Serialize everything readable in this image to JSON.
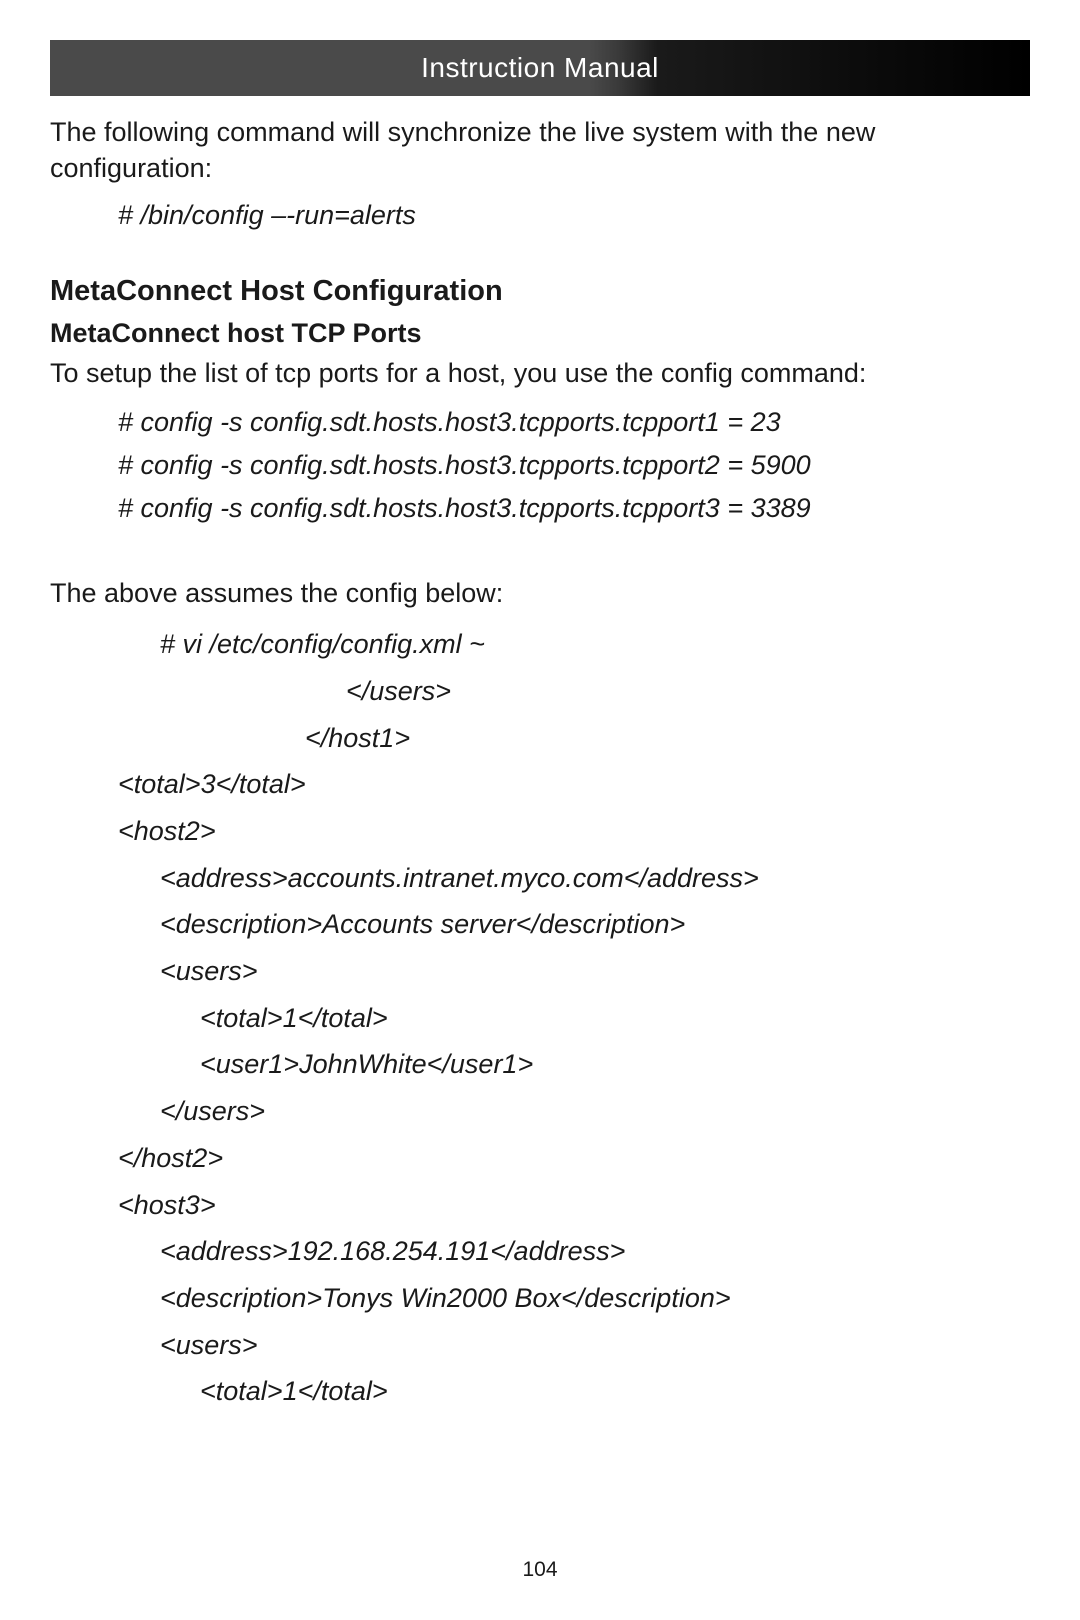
{
  "header": {
    "title": "Instruction Manual"
  },
  "intro_text": "The following command will synchronize the live system with the new configuration:",
  "intro_command": "# /bin/config –-run=alerts",
  "section": {
    "heading": "MetaConnect Host Configuration",
    "sub_heading": "MetaConnect host TCP Ports",
    "body": "To setup the list of tcp ports for a host, you use the config command:",
    "commands": [
      "# config -s config.sdt.hosts.host3.tcpports.tcpport1 = 23",
      "# config -s config.sdt.hosts.host3.tcpports.tcpport2 = 5900",
      "# config -s config.sdt.hosts.host3.tcpports.tcpport3 = 3389"
    ],
    "assumes": "The above assumes the config below:",
    "xml_lines": [
      {
        "text": "# vi /etc/config/config.xml ~",
        "indent": "indent-1"
      },
      {
        "text": "</users>",
        "indent": "indent-center2"
      },
      {
        "text": "</host1>",
        "indent": "indent-center1"
      },
      {
        "text": "<total>3</total>",
        "indent": "indent-0"
      },
      {
        "text": "<host2>",
        "indent": "indent-0"
      },
      {
        "text": "<address>accounts.intranet.myco.com</address>",
        "indent": "indent-1"
      },
      {
        "text": "<description>Accounts server</description>",
        "indent": "indent-1"
      },
      {
        "text": "<users>",
        "indent": "indent-1"
      },
      {
        "text": "<total>1</total>",
        "indent": "indent-2"
      },
      {
        "text": "<user1>JohnWhite</user1>",
        "indent": "indent-2"
      },
      {
        "text": "</users>",
        "indent": "indent-1"
      },
      {
        "text": "</host2>",
        "indent": "indent-0"
      },
      {
        "text": "<host3>",
        "indent": "indent-0"
      },
      {
        "text": "<address>192.168.254.191</address>",
        "indent": "indent-1"
      },
      {
        "text": "<description>Tonys Win2000 Box</description>",
        "indent": "indent-1"
      },
      {
        "text": "<users>",
        "indent": "indent-1"
      },
      {
        "text": "<total>1</total>",
        "indent": "indent-2"
      }
    ]
  },
  "page_number": "104",
  "styles": {
    "page_bg": "#ffffff",
    "text_color": "#1a1a1a",
    "header_bg_gradient_start": "#4a4a4a",
    "header_bg_gradient_end": "#000000",
    "header_text_color": "#ffffff",
    "body_fontsize": 27,
    "heading_fontsize": 29,
    "page_number_fontsize": 21
  }
}
